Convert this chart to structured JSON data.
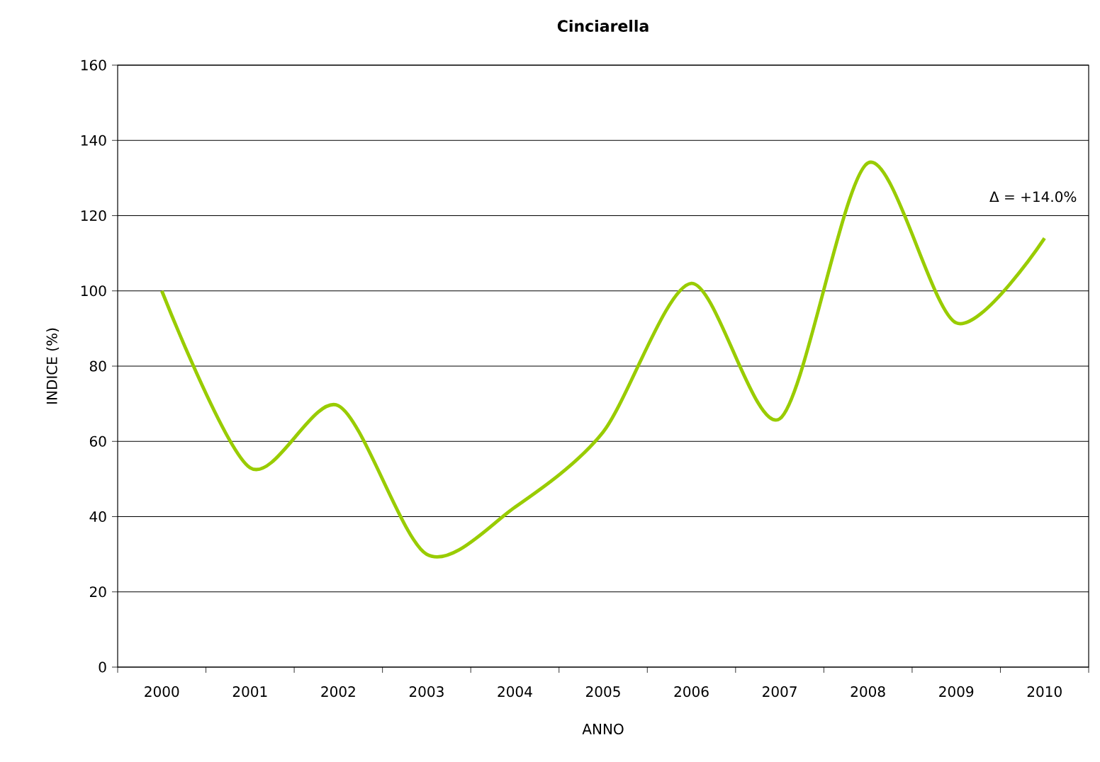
{
  "chart_data": {
    "type": "line",
    "title": "Cinciarella",
    "xlabel": "ANNO",
    "ylabel": "INDICE (%)",
    "categories": [
      "2000",
      "2001",
      "2002",
      "2003",
      "2004",
      "2005",
      "2006",
      "2007",
      "2008",
      "2009",
      "2010"
    ],
    "series": [
      {
        "color": "#99cc00",
        "values": [
          100,
          53,
          69.5,
          30,
          42.5,
          62.5,
          102,
          66,
          134,
          91.5,
          114
        ]
      }
    ],
    "ylim": [
      0,
      160
    ],
    "yticks": [
      0,
      20,
      40,
      60,
      80,
      100,
      120,
      140,
      160
    ],
    "grid": "y",
    "marker": "none",
    "line_style": "solid",
    "annotations": [
      "Δ = +14.0%"
    ]
  }
}
